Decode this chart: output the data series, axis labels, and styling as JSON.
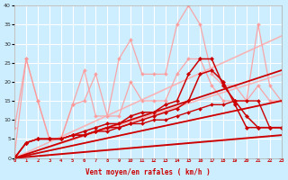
{
  "xlabel": "Vent moyen/en rafales ( km/h )",
  "background_color": "#cceeff",
  "grid_color": "#ffffff",
  "xlim": [
    0,
    23
  ],
  "ylim": [
    0,
    40
  ],
  "xticks": [
    0,
    1,
    2,
    3,
    4,
    5,
    6,
    7,
    8,
    9,
    10,
    11,
    12,
    13,
    14,
    15,
    16,
    17,
    18,
    19,
    20,
    21,
    22,
    23
  ],
  "yticks": [
    0,
    5,
    10,
    15,
    20,
    25,
    30,
    35,
    40
  ],
  "series": [
    {
      "x": [
        0,
        1,
        2,
        3,
        4,
        5,
        6,
        7,
        8,
        9,
        10,
        11,
        12,
        13,
        14,
        15,
        16,
        17,
        18,
        19,
        20,
        21,
        22,
        23
      ],
      "y": [
        1,
        26,
        15,
        5,
        5,
        14,
        23,
        11,
        11,
        26,
        31,
        22,
        22,
        22,
        35,
        40,
        35,
        22,
        19,
        19,
        15,
        35,
        19,
        15
      ],
      "color": "#ff9999",
      "lw": 0.9,
      "marker": "D",
      "ms": 2.0,
      "alpha": 0.85
    },
    {
      "x": [
        0,
        1,
        2,
        3,
        4,
        5,
        6,
        7,
        8,
        9,
        10,
        11,
        12,
        13,
        14,
        15,
        16,
        17,
        18,
        19,
        20,
        21,
        22,
        23
      ],
      "y": [
        8,
        26,
        15,
        5,
        5,
        14,
        15,
        22,
        11,
        11,
        20,
        15,
        15,
        15,
        22,
        26,
        26,
        19,
        15,
        15,
        15,
        19,
        15,
        15
      ],
      "color": "#ff9999",
      "lw": 0.9,
      "marker": "D",
      "ms": 2.0,
      "alpha": 0.85
    },
    {
      "x": [
        0,
        23
      ],
      "y": [
        0,
        32
      ],
      "color": "#ffaaaa",
      "lw": 1.2,
      "marker": null,
      "ms": 0,
      "alpha": 0.85
    },
    {
      "x": [
        0,
        23
      ],
      "y": [
        0,
        22
      ],
      "color": "#ffaaaa",
      "lw": 1.1,
      "marker": null,
      "ms": 0,
      "alpha": 0.85
    },
    {
      "x": [
        0,
        23
      ],
      "y": [
        0,
        15
      ],
      "color": "#ffaaaa",
      "lw": 1.0,
      "marker": null,
      "ms": 0,
      "alpha": 0.8
    },
    {
      "x": [
        0,
        1,
        2,
        3,
        4,
        5,
        6,
        7,
        8,
        9,
        10,
        11,
        12,
        13,
        14,
        15,
        16,
        17,
        18,
        19,
        20,
        21,
        22,
        23
      ],
      "y": [
        0,
        4,
        5,
        5,
        5,
        6,
        7,
        8,
        9,
        9,
        11,
        12,
        12,
        14,
        15,
        22,
        26,
        26,
        19,
        15,
        11,
        8,
        8,
        8
      ],
      "color": "#cc0000",
      "lw": 1.1,
      "marker": "D",
      "ms": 2.2,
      "alpha": 1.0
    },
    {
      "x": [
        0,
        1,
        2,
        3,
        4,
        5,
        6,
        7,
        8,
        9,
        10,
        11,
        12,
        13,
        14,
        15,
        16,
        17,
        18,
        19,
        20,
        21,
        22,
        23
      ],
      "y": [
        0,
        4,
        5,
        5,
        5,
        6,
        6,
        7,
        8,
        8,
        9,
        10,
        11,
        12,
        13,
        15,
        22,
        23,
        20,
        14,
        8,
        8,
        8,
        8
      ],
      "color": "#cc0000",
      "lw": 1.1,
      "marker": "D",
      "ms": 2.2,
      "alpha": 1.0
    },
    {
      "x": [
        0,
        23
      ],
      "y": [
        0,
        23
      ],
      "color": "#cc0000",
      "lw": 1.3,
      "marker": null,
      "ms": 0,
      "alpha": 1.0
    },
    {
      "x": [
        0,
        23
      ],
      "y": [
        0,
        15
      ],
      "color": "#cc0000",
      "lw": 1.3,
      "marker": null,
      "ms": 0,
      "alpha": 1.0
    },
    {
      "x": [
        0,
        23
      ],
      "y": [
        0,
        6
      ],
      "color": "#cc0000",
      "lw": 1.4,
      "marker": null,
      "ms": 0,
      "alpha": 1.0
    },
    {
      "x": [
        0,
        1,
        2,
        3,
        4,
        5,
        6,
        7,
        8,
        9,
        10,
        11,
        12,
        13,
        14,
        15,
        16,
        17,
        18,
        19,
        20,
        21,
        22,
        23
      ],
      "y": [
        0,
        4,
        5,
        5,
        5,
        6,
        6,
        7,
        7,
        8,
        9,
        9,
        10,
        10,
        11,
        12,
        13,
        14,
        14,
        15,
        15,
        15,
        8,
        8
      ],
      "color": "#cc0000",
      "lw": 1.0,
      "marker": "D",
      "ms": 2.0,
      "alpha": 1.0
    }
  ]
}
